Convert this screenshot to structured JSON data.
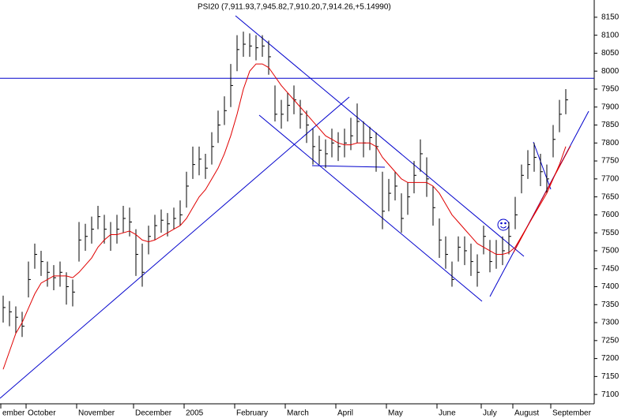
{
  "chart_data": {
    "type": "ohlc",
    "title": "PSI20 (7,911.93,7,945.82,7,910.20,7,914.26,+5.14990)",
    "categories": [
      "ember",
      null,
      null,
      null,
      "October",
      null,
      null,
      null,
      null,
      null,
      null,
      null,
      "November",
      null,
      null,
      null,
      null,
      null,
      null,
      null,
      null,
      "December",
      null,
      null,
      null,
      null,
      null,
      null,
      null,
      "2005",
      null,
      null,
      null,
      null,
      null,
      null,
      null,
      "February",
      null,
      null,
      null,
      null,
      null,
      null,
      null,
      "March",
      null,
      null,
      null,
      null,
      null,
      null,
      null,
      "April",
      null,
      null,
      null,
      null,
      null,
      null,
      null,
      "May",
      null,
      null,
      null,
      null,
      null,
      null,
      null,
      "June",
      null,
      null,
      null,
      null,
      null,
      null,
      "July",
      null,
      null,
      null,
      null,
      "August",
      null,
      null,
      null,
      null,
      null,
      "September",
      null,
      null
    ],
    "color": "#000000",
    "high": [
      7375,
      7360,
      7345,
      7330,
      7470,
      7520,
      7500,
      7470,
      7460,
      7470,
      7440,
      7420,
      7580,
      7575,
      7595,
      7625,
      7600,
      7580,
      7600,
      7625,
      7620,
      7560,
      7520,
      7570,
      7600,
      7615,
      7605,
      7620,
      7640,
      7720,
      7790,
      7790,
      7770,
      7830,
      7890,
      7930,
      8020,
      8100,
      8110,
      8105,
      8100,
      8100,
      8085,
      7960,
      7920,
      7940,
      7960,
      7920,
      7890,
      7840,
      7820,
      7810,
      7840,
      7830,
      7840,
      7870,
      7910,
      7860,
      7845,
      7830,
      7720,
      7700,
      7720,
      7660,
      7690,
      7750,
      7810,
      7760,
      7680,
      7590,
      7540,
      7470,
      7540,
      7540,
      7520,
      7490,
      7570,
      7530,
      7530,
      7540,
      7580,
      7650,
      7740,
      7780,
      7800,
      7770,
      7740,
      7850,
      7920,
      7950
    ],
    "low": [
      7300,
      7290,
      7270,
      7260,
      7370,
      7450,
      7430,
      7400,
      7390,
      7400,
      7350,
      7345,
      7470,
      7500,
      7520,
      7560,
      7520,
      7500,
      7520,
      7550,
      7540,
      7430,
      7400,
      7490,
      7530,
      7550,
      7540,
      7560,
      7570,
      7620,
      7700,
      7710,
      7700,
      7740,
      7800,
      7850,
      7900,
      8000,
      8040,
      8040,
      8030,
      8040,
      7990,
      7860,
      7840,
      7860,
      7880,
      7840,
      7800,
      7740,
      7740,
      7730,
      7760,
      7750,
      7760,
      7780,
      7800,
      7760,
      7780,
      7720,
      7560,
      7610,
      7640,
      7550,
      7600,
      7660,
      7720,
      7650,
      7570,
      7480,
      7450,
      7400,
      7470,
      7460,
      7430,
      7400,
      7490,
      7440,
      7450,
      7460,
      7490,
      7560,
      7660,
      7700,
      7720,
      7680,
      7660,
      7760,
      7830,
      7880
    ],
    "close": [
      7342,
      7330,
      7315,
      7290,
      7420,
      7490,
      7470,
      7440,
      7425,
      7440,
      7400,
      7385,
      7530,
      7540,
      7560,
      7595,
      7560,
      7545,
      7560,
      7590,
      7580,
      7490,
      7440,
      7540,
      7570,
      7585,
      7575,
      7590,
      7600,
      7680,
      7740,
      7755,
      7730,
      7790,
      7850,
      7890,
      7960,
      8060,
      8075,
      8070,
      8065,
      8070,
      8040,
      7880,
      7880,
      7905,
      7920,
      7880,
      7850,
      7790,
      7780,
      7770,
      7800,
      7790,
      7800,
      7820,
      7860,
      7800,
      7815,
      7790,
      7610,
      7660,
      7680,
      7590,
      7650,
      7710,
      7770,
      7700,
      7620,
      7530,
      7490,
      7420,
      7510,
      7500,
      7470,
      7440,
      7540,
      7470,
      7490,
      7500,
      7540,
      7600,
      7710,
      7740,
      7760,
      7720,
      7700,
      7810,
      7880,
      7920
    ],
    "moving_average": {
      "color": "#e00000",
      "values": [
        7170,
        7220,
        7270,
        7300,
        7340,
        7380,
        7410,
        7420,
        7430,
        7430,
        7430,
        7425,
        7440,
        7460,
        7480,
        7510,
        7530,
        7545,
        7545,
        7550,
        7555,
        7545,
        7530,
        7525,
        7530,
        7540,
        7550,
        7560,
        7570,
        7590,
        7620,
        7650,
        7670,
        7700,
        7730,
        7770,
        7820,
        7880,
        7950,
        8000,
        8020,
        8020,
        8010,
        7985,
        7960,
        7940,
        7920,
        7900,
        7880,
        7860,
        7840,
        7820,
        7810,
        7800,
        7795,
        7795,
        7800,
        7800,
        7800,
        7790,
        7760,
        7740,
        7720,
        7700,
        7690,
        7690,
        7690,
        7690,
        7680,
        7660,
        7630,
        7600,
        7580,
        7560,
        7540,
        7520,
        7510,
        7500,
        7490,
        7490,
        7495,
        7510,
        7540,
        7570,
        7600,
        7630,
        7660,
        7700,
        7740,
        7790
      ]
    },
    "reference_line": 7980,
    "ylim": [
      7074,
      8198
    ],
    "yticks": [
      7100,
      7150,
      7200,
      7250,
      7300,
      7350,
      7400,
      7450,
      7500,
      7550,
      7600,
      7650,
      7700,
      7750,
      7800,
      7850,
      7900,
      7950,
      8000,
      8050,
      8100,
      8150
    ]
  }
}
